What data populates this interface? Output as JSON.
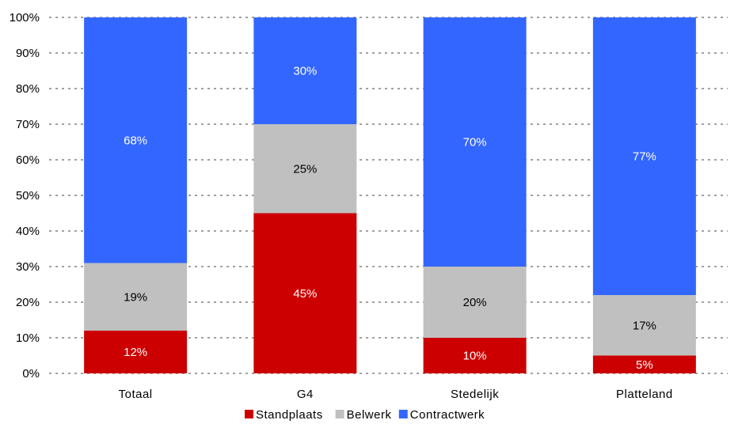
{
  "chart_data": {
    "type": "bar",
    "stacked": true,
    "categories": [
      "Totaal",
      "G4",
      "Stedelijk",
      "Platteland"
    ],
    "series": [
      {
        "name": "Standplaats",
        "color": "#cc0000",
        "label_color": "#ffffff",
        "values": [
          12,
          45,
          10,
          5
        ],
        "labels": [
          "12%",
          "45%",
          "10%",
          "5%"
        ]
      },
      {
        "name": "Belwerk",
        "color": "#c0c0c0",
        "label_color": "#000000",
        "values": [
          19,
          25,
          20,
          17
        ],
        "labels": [
          "19%",
          "25%",
          "20%",
          "17%"
        ]
      },
      {
        "name": "Contractwerk",
        "color": "#3366ff",
        "label_color": "#ffffff",
        "values": [
          68,
          30,
          70,
          77
        ],
        "labels": [
          "68%",
          "30%",
          "70%",
          "77%"
        ]
      }
    ],
    "y_ticks": [
      "0%",
      "10%",
      "20%",
      "30%",
      "40%",
      "50%",
      "60%",
      "70%",
      "80%",
      "90%",
      "100%"
    ],
    "ylim": [
      0,
      100
    ],
    "grid": true,
    "legend_position": "bottom",
    "title": "",
    "xlabel": "",
    "ylabel": ""
  }
}
